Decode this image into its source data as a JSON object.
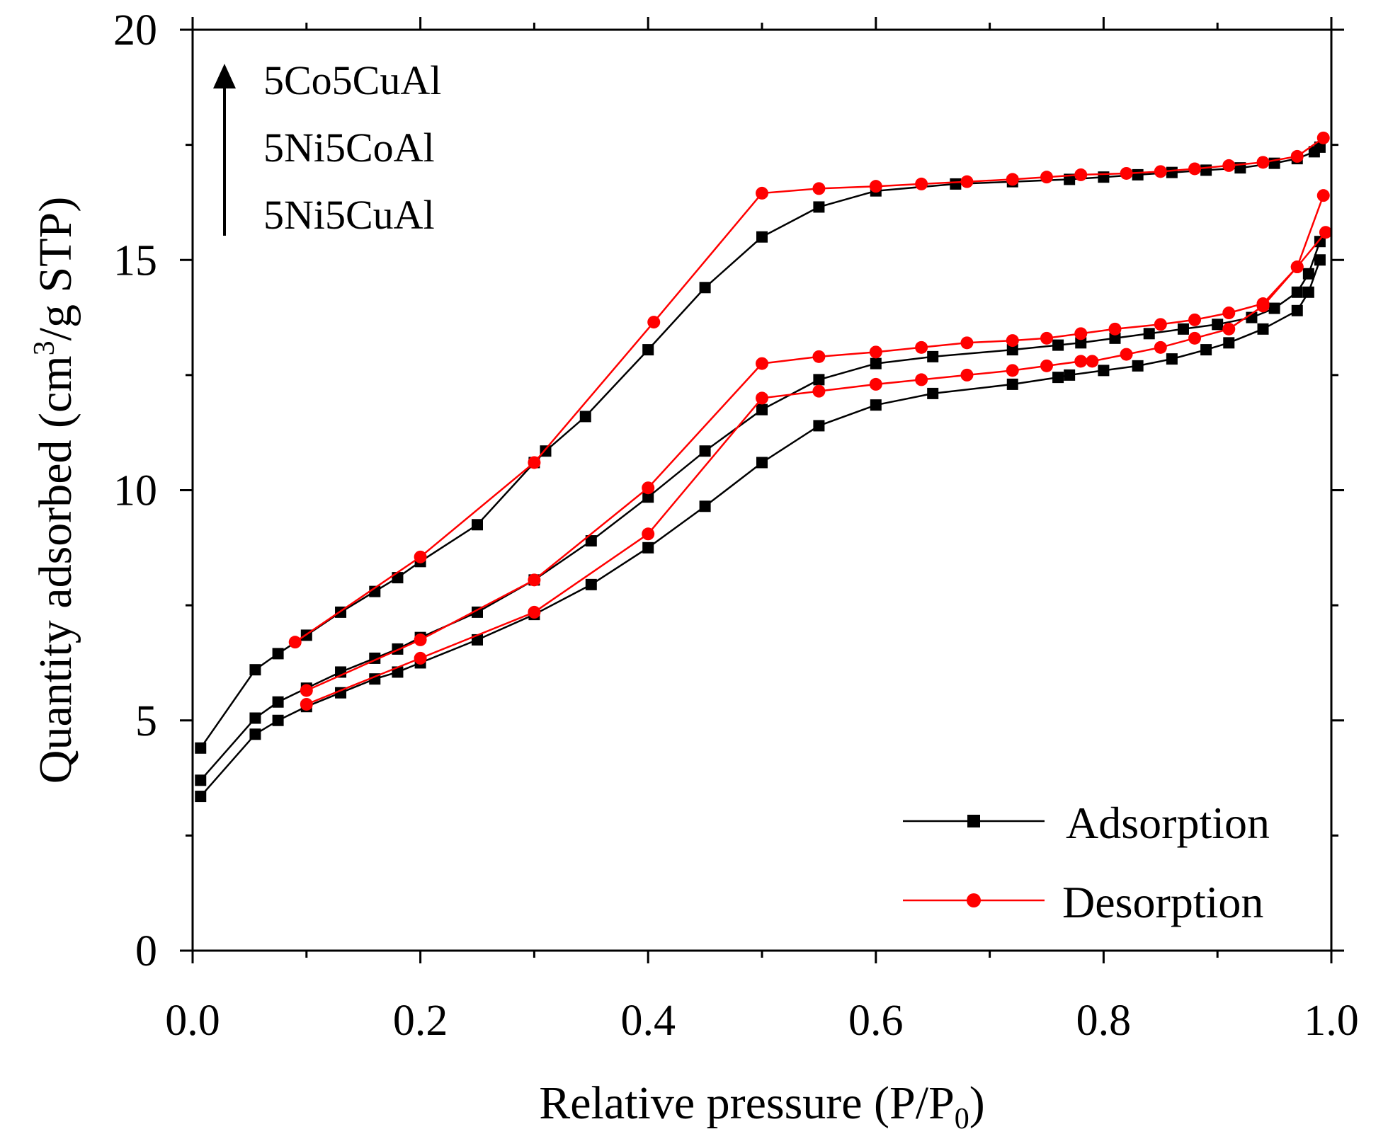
{
  "chart_data": {
    "type": "line",
    "title": "",
    "xlabel_main": "Relative pressure (P/P",
    "xlabel_sub": "0",
    "xlabel_end": ")",
    "ylabel_main": "Quantity adsorbed (cm",
    "ylabel_sup": "3",
    "ylabel_end": "/g STP)",
    "xlim": [
      0,
      1.0
    ],
    "ylim": [
      0,
      20
    ],
    "xticks": [
      0.0,
      0.2,
      0.4,
      0.6,
      0.8,
      1.0
    ],
    "xtick_labels": [
      "0.0",
      "0.2",
      "0.4",
      "0.6",
      "0.8",
      "1.0"
    ],
    "yticks": [
      0,
      5,
      10,
      15,
      20
    ],
    "ytick_labels": [
      "0",
      "5",
      "10",
      "15",
      "20"
    ],
    "colors": {
      "adsorption": "#000000",
      "desorption": "#ff0000"
    },
    "annotation": {
      "arrow_direction": "up",
      "labels": [
        "5Co5CuAl",
        "5Ni5CoAl",
        "5Ni5CuAl"
      ]
    },
    "legend": {
      "position": "bottom-right",
      "entries": [
        {
          "label": "Adsorption",
          "color": "#000000",
          "marker": "square"
        },
        {
          "label": "Desorption",
          "color": "#ff0000",
          "marker": "circle"
        }
      ]
    },
    "series": [
      {
        "name": "5Co5CuAl Adsorption",
        "sample": "5Co5CuAl",
        "kind": "adsorption",
        "x": [
          0.007,
          0.055,
          0.075,
          0.1,
          0.13,
          0.16,
          0.18,
          0.2,
          0.25,
          0.3,
          0.31,
          0.345,
          0.4,
          0.45,
          0.5,
          0.55,
          0.6,
          0.67,
          0.72,
          0.77,
          0.8,
          0.83,
          0.86,
          0.89,
          0.92,
          0.95,
          0.97,
          0.985,
          0.99
        ],
        "y": [
          4.4,
          6.1,
          6.45,
          6.85,
          7.35,
          7.8,
          8.1,
          8.45,
          9.25,
          10.6,
          10.85,
          11.6,
          13.05,
          14.4,
          15.5,
          16.15,
          16.5,
          16.65,
          16.7,
          16.75,
          16.8,
          16.85,
          16.9,
          16.95,
          17.0,
          17.1,
          17.2,
          17.35,
          17.45
        ]
      },
      {
        "name": "5Co5CuAl Desorption",
        "sample": "5Co5CuAl",
        "kind": "desorption",
        "x": [
          0.09,
          0.2,
          0.3,
          0.405,
          0.5,
          0.55,
          0.6,
          0.64,
          0.68,
          0.72,
          0.75,
          0.78,
          0.82,
          0.85,
          0.88,
          0.91,
          0.94,
          0.97,
          0.993
        ],
        "y": [
          6.7,
          8.55,
          10.6,
          13.65,
          16.45,
          16.55,
          16.6,
          16.65,
          16.7,
          16.75,
          16.8,
          16.85,
          16.88,
          16.92,
          16.98,
          17.05,
          17.12,
          17.25,
          17.65
        ]
      },
      {
        "name": "5Ni5CoAl Adsorption",
        "sample": "5Ni5CoAl",
        "kind": "adsorption",
        "x": [
          0.007,
          0.055,
          0.075,
          0.1,
          0.13,
          0.16,
          0.18,
          0.2,
          0.25,
          0.3,
          0.35,
          0.4,
          0.45,
          0.5,
          0.55,
          0.6,
          0.65,
          0.72,
          0.76,
          0.78,
          0.81,
          0.84,
          0.87,
          0.9,
          0.93,
          0.95,
          0.97,
          0.98,
          0.99
        ],
        "y": [
          3.7,
          5.05,
          5.4,
          5.7,
          6.05,
          6.35,
          6.55,
          6.8,
          7.35,
          8.05,
          8.9,
          9.85,
          10.85,
          11.75,
          12.4,
          12.75,
          12.9,
          13.05,
          13.15,
          13.2,
          13.3,
          13.4,
          13.5,
          13.6,
          13.75,
          13.95,
          14.3,
          14.7,
          15.4
        ]
      },
      {
        "name": "5Ni5CoAl Desorption",
        "sample": "5Ni5CoAl",
        "kind": "desorption",
        "x": [
          0.1,
          0.2,
          0.3,
          0.4,
          0.5,
          0.55,
          0.6,
          0.64,
          0.68,
          0.72,
          0.75,
          0.78,
          0.81,
          0.85,
          0.88,
          0.91,
          0.94,
          0.97,
          0.993
        ],
        "y": [
          5.65,
          6.75,
          8.05,
          10.05,
          12.75,
          12.9,
          13.0,
          13.1,
          13.2,
          13.25,
          13.3,
          13.4,
          13.5,
          13.6,
          13.7,
          13.85,
          14.05,
          14.85,
          16.4
        ]
      },
      {
        "name": "5Ni5CuAl Adsorption",
        "sample": "5Ni5CuAl",
        "kind": "adsorption",
        "x": [
          0.007,
          0.055,
          0.075,
          0.1,
          0.13,
          0.16,
          0.18,
          0.2,
          0.25,
          0.3,
          0.35,
          0.4,
          0.45,
          0.5,
          0.55,
          0.6,
          0.65,
          0.72,
          0.76,
          0.77,
          0.8,
          0.83,
          0.86,
          0.89,
          0.91,
          0.94,
          0.97,
          0.98,
          0.99
        ],
        "y": [
          3.35,
          4.7,
          5.0,
          5.3,
          5.6,
          5.9,
          6.05,
          6.25,
          6.75,
          7.3,
          7.95,
          8.75,
          9.65,
          10.6,
          11.4,
          11.85,
          12.1,
          12.3,
          12.45,
          12.5,
          12.6,
          12.7,
          12.85,
          13.05,
          13.2,
          13.5,
          13.9,
          14.3,
          15.0
        ]
      },
      {
        "name": "5Ni5CuAl Desorption",
        "sample": "5Ni5CuAl",
        "kind": "desorption",
        "x": [
          0.1,
          0.2,
          0.3,
          0.4,
          0.5,
          0.55,
          0.6,
          0.64,
          0.68,
          0.72,
          0.75,
          0.78,
          0.79,
          0.82,
          0.85,
          0.88,
          0.91,
          0.94,
          0.97,
          0.995
        ],
        "y": [
          5.35,
          6.35,
          7.35,
          9.05,
          12.0,
          12.15,
          12.3,
          12.4,
          12.5,
          12.6,
          12.7,
          12.8,
          12.8,
          12.95,
          13.1,
          13.3,
          13.5,
          14.0,
          14.85,
          15.6
        ]
      }
    ]
  }
}
